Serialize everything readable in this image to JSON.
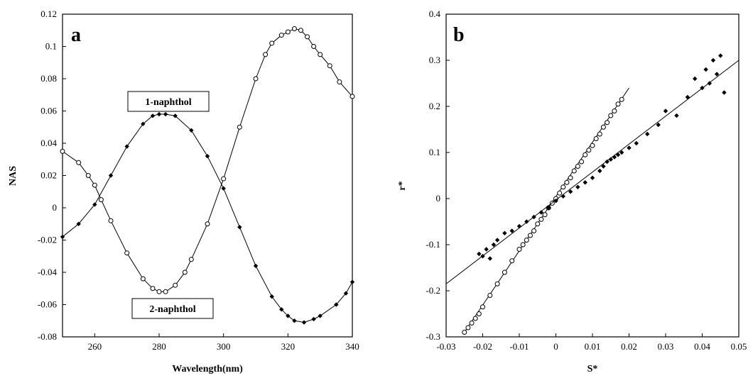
{
  "chart_data": [
    {
      "type": "line",
      "panel": "a",
      "xlabel": "Wavelength(nm)",
      "ylabel": "NAS",
      "xlim": [
        250,
        340
      ],
      "ylim": [
        -0.08,
        0.12
      ],
      "xticks": [
        260,
        280,
        300,
        320,
        340
      ],
      "yticks": [
        -0.08,
        -0.06,
        -0.04,
        -0.02,
        0,
        0.02,
        0.04,
        0.06,
        0.08,
        0.1,
        0.12
      ],
      "ytick_labels": [
        "-0.08",
        "-0.06",
        "-0.04",
        "-0.02",
        "0",
        "0.02",
        "0.04",
        "0.06",
        "0.08",
        "0.1",
        "0.12"
      ],
      "grid": false,
      "annotations": [
        "1-naphthol",
        "2-naphthol"
      ],
      "series": [
        {
          "marker": "filled-diamond",
          "x": [
            250,
            255,
            260,
            265,
            270,
            275,
            278,
            280,
            282,
            285,
            290,
            295,
            300,
            305,
            310,
            315,
            318,
            320,
            322,
            325,
            328,
            330,
            335,
            338,
            340
          ],
          "y": [
            -0.018,
            -0.01,
            0.002,
            0.02,
            0.038,
            0.052,
            0.057,
            0.058,
            0.058,
            0.057,
            0.048,
            0.032,
            0.012,
            -0.012,
            -0.036,
            -0.055,
            -0.063,
            -0.067,
            -0.07,
            -0.071,
            -0.069,
            -0.067,
            -0.06,
            -0.053,
            -0.046
          ]
        },
        {
          "marker": "open-circle",
          "x": [
            250,
            255,
            258,
            260,
            262,
            265,
            270,
            275,
            278,
            280,
            282,
            285,
            288,
            290,
            295,
            300,
            305,
            310,
            313,
            315,
            318,
            320,
            322,
            324,
            326,
            328,
            330,
            333,
            336,
            340
          ],
          "y": [
            0.035,
            0.028,
            0.02,
            0.014,
            0.005,
            -0.008,
            -0.028,
            -0.044,
            -0.05,
            -0.052,
            -0.052,
            -0.048,
            -0.04,
            -0.032,
            -0.01,
            0.018,
            0.05,
            0.08,
            0.095,
            0.102,
            0.107,
            0.109,
            0.111,
            0.11,
            0.106,
            0.1,
            0.095,
            0.088,
            0.078,
            0.069
          ]
        }
      ]
    },
    {
      "type": "scatter",
      "panel": "b",
      "xlabel": "S*",
      "ylabel": "r*",
      "xlim": [
        -0.03,
        0.05
      ],
      "ylim": [
        -0.3,
        0.4
      ],
      "xticks": [
        -0.03,
        -0.02,
        -0.01,
        0,
        0.01,
        0.02,
        0.03,
        0.04,
        0.05
      ],
      "xtick_labels": [
        "-0.03",
        "-0.02",
        "-0.01",
        "0",
        "0.01",
        "0.02",
        "0.03",
        "0.04",
        "0.05"
      ],
      "yticks": [
        -0.3,
        -0.2,
        -0.1,
        0,
        0.1,
        0.2,
        0.3,
        0.4
      ],
      "ytick_labels": [
        "-0.3",
        "-0.2",
        "-0.1",
        "0",
        "0.1",
        "0.2",
        "0.3",
        "0.4"
      ],
      "grid": false,
      "series": [
        {
          "marker": "open-circle",
          "fit_line": {
            "x": [
              -0.025,
              0.02
            ],
            "y": [
              -0.29,
              0.24
            ]
          },
          "x": [
            -0.025,
            -0.024,
            -0.023,
            -0.022,
            -0.021,
            -0.02,
            -0.018,
            -0.016,
            -0.014,
            -0.012,
            -0.01,
            -0.009,
            -0.008,
            -0.007,
            -0.006,
            -0.005,
            -0.004,
            -0.003,
            -0.002,
            -0.001,
            0,
            0.001,
            0.002,
            0.003,
            0.004,
            0.005,
            0.006,
            0.007,
            0.008,
            0.009,
            0.01,
            0.011,
            0.012,
            0.013,
            0.014,
            0.015,
            0.016,
            0.017,
            0.018
          ],
          "y": [
            -0.29,
            -0.28,
            -0.27,
            -0.26,
            -0.25,
            -0.235,
            -0.21,
            -0.185,
            -0.16,
            -0.135,
            -0.11,
            -0.1,
            -0.09,
            -0.08,
            -0.07,
            -0.055,
            -0.045,
            -0.035,
            -0.02,
            -0.01,
            0,
            0.012,
            0.025,
            0.035,
            0.045,
            0.06,
            0.07,
            0.08,
            0.095,
            0.105,
            0.115,
            0.13,
            0.14,
            0.155,
            0.165,
            0.18,
            0.19,
            0.205,
            0.215
          ]
        },
        {
          "marker": "filled-diamond",
          "fit_line": {
            "x": [
              -0.03,
              0.05
            ],
            "y": [
              -0.185,
              0.3
            ]
          },
          "x": [
            -0.021,
            -0.02,
            -0.019,
            -0.018,
            -0.017,
            -0.016,
            -0.014,
            -0.012,
            -0.01,
            -0.008,
            -0.006,
            -0.004,
            -0.002,
            0,
            0.002,
            0.004,
            0.006,
            0.008,
            0.01,
            0.012,
            0.013,
            0.014,
            0.015,
            0.016,
            0.017,
            0.018,
            0.02,
            0.022,
            0.025,
            0.028,
            0.03,
            0.033,
            0.036,
            0.038,
            0.04,
            0.041,
            0.042,
            0.043,
            0.044,
            0.045,
            0.046
          ],
          "y": [
            -0.12,
            -0.125,
            -0.11,
            -0.13,
            -0.1,
            -0.09,
            -0.075,
            -0.07,
            -0.06,
            -0.05,
            -0.04,
            -0.03,
            -0.02,
            -0.005,
            0.005,
            0.015,
            0.025,
            0.035,
            0.045,
            0.06,
            0.07,
            0.08,
            0.085,
            0.09,
            0.095,
            0.1,
            0.11,
            0.12,
            0.14,
            0.16,
            0.19,
            0.18,
            0.22,
            0.26,
            0.24,
            0.28,
            0.25,
            0.3,
            0.27,
            0.31,
            0.23
          ]
        }
      ]
    }
  ]
}
